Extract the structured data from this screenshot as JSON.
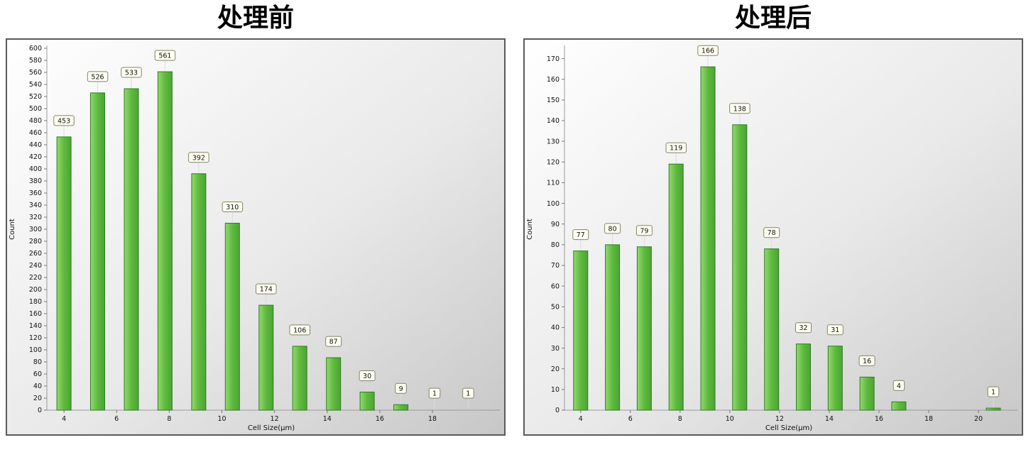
{
  "page": {
    "background": "#ffffff"
  },
  "style": {
    "bar_fill_light": "#93d96e",
    "bar_fill": "#5eba3e",
    "bar_fill_dark": "#4da335",
    "bar_stroke": "#2e7d22",
    "label_box_fill": "#fffff2",
    "label_box_stroke": "#83836a",
    "panel_bg_top": "#ffffff",
    "panel_bg_mid": "#e9e9e9",
    "panel_bg_bottom": "#c7c7c7",
    "panel_border": "#5a5a5a",
    "axis_color": "#9b9b9b",
    "tick_color": "#777777",
    "connector_color": "#dcdcdc",
    "text_color": "#111111"
  },
  "chart_data": [
    {
      "type": "bar",
      "title": "处理前",
      "xlabel": "Cell Size(μm)",
      "ylabel": "Count",
      "grid": false,
      "legend": "none",
      "x": [
        4,
        5.28,
        6.56,
        7.84,
        9.12,
        10.4,
        11.68,
        12.96,
        14.24,
        15.52,
        16.8,
        18.08,
        19.36
      ],
      "values": [
        453,
        526,
        533,
        561,
        392,
        310,
        174,
        106,
        87,
        30,
        9,
        1,
        1
      ],
      "xticks": [
        4,
        6,
        8,
        10,
        12,
        14,
        16,
        18
      ],
      "xlim": [
        3.35,
        20.4
      ],
      "ylim": [
        0,
        600
      ],
      "ytick_step": 20,
      "ytick_max": 600
    },
    {
      "type": "bar",
      "title": "处理后",
      "xlabel": "Cell Size(μm)",
      "ylabel": "Count",
      "grid": false,
      "legend": "none",
      "x": [
        4,
        5.28,
        6.56,
        7.84,
        9.12,
        10.4,
        11.68,
        12.96,
        14.24,
        15.52,
        16.8,
        20.6
      ],
      "values": [
        77,
        80,
        79,
        119,
        166,
        138,
        78,
        32,
        31,
        16,
        4,
        1
      ],
      "xticks": [
        4,
        6,
        8,
        10,
        12,
        14,
        16,
        18,
        20
      ],
      "xlim": [
        3.35,
        21.4
      ],
      "ylim": [
        0,
        175
      ],
      "ytick_step": 10,
      "ytick_max": 170
    }
  ]
}
